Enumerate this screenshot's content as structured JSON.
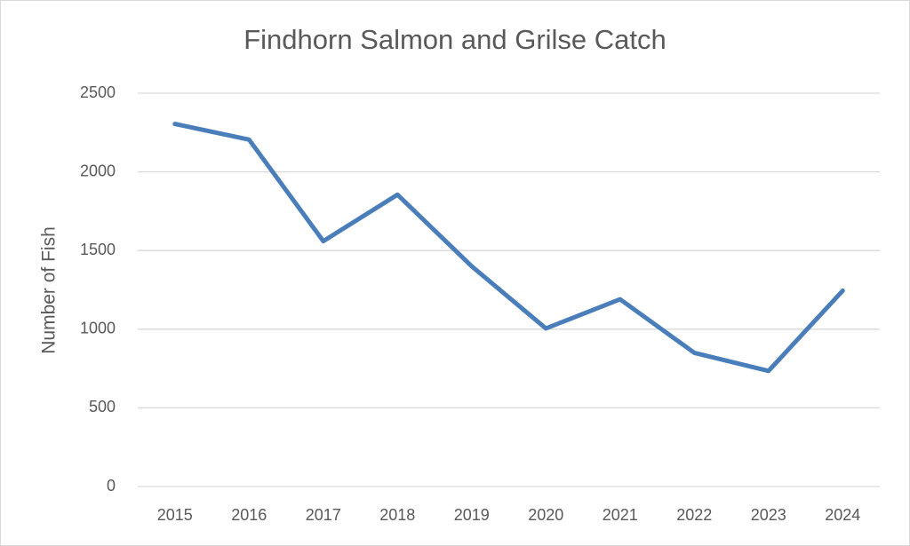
{
  "chart_data": {
    "type": "line",
    "title": "Findhorn Salmon and Grilse Catch",
    "y_label": "Number of Fish",
    "categories": [
      "2015",
      "2016",
      "2017",
      "2018",
      "2019",
      "2020",
      "2021",
      "2022",
      "2023",
      "2024"
    ],
    "values": [
      2305,
      2205,
      1560,
      1855,
      1400,
      1005,
      1190,
      850,
      735,
      1245
    ],
    "color": "#4a7ebb",
    "ylim": [
      0,
      2500
    ],
    "yticks": [
      0,
      500,
      1000,
      1500,
      2000,
      2500
    ],
    "grid": true
  }
}
